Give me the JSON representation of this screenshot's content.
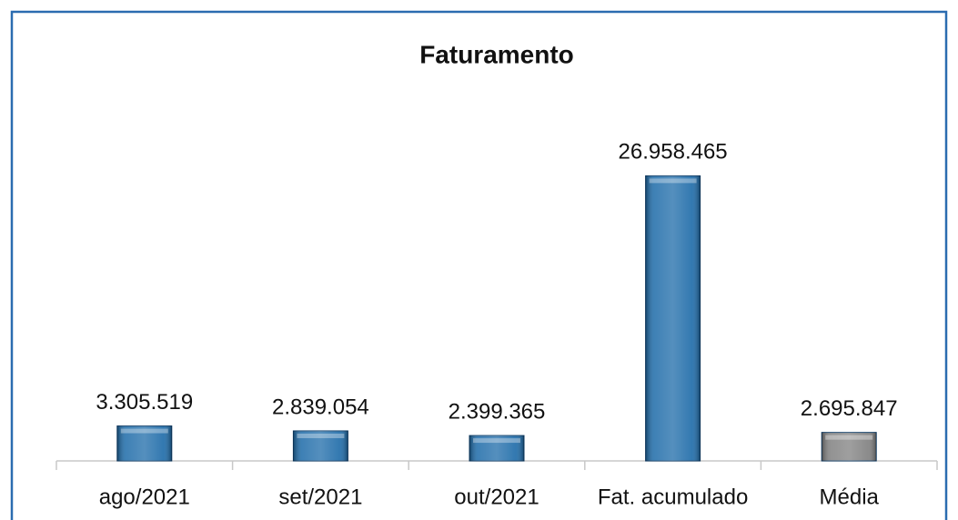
{
  "chart_data": {
    "type": "bar",
    "title": "Faturamento",
    "categories": [
      "ago/2021",
      "set/2021",
      "out/2021",
      "Fat. acumulado",
      "Média"
    ],
    "values": [
      3305519,
      2839054,
      2399365,
      26958465,
      2695847
    ],
    "value_labels": [
      "3.305.519",
      "2.839.054",
      "2.399.365",
      "26.958.465",
      "2.695.847"
    ],
    "colors": [
      "#1c6aa8",
      "#1c6aa8",
      "#1c6aa8",
      "#1c6aa8",
      "#7f7f7f"
    ],
    "ylim": [
      0,
      30000000
    ]
  }
}
